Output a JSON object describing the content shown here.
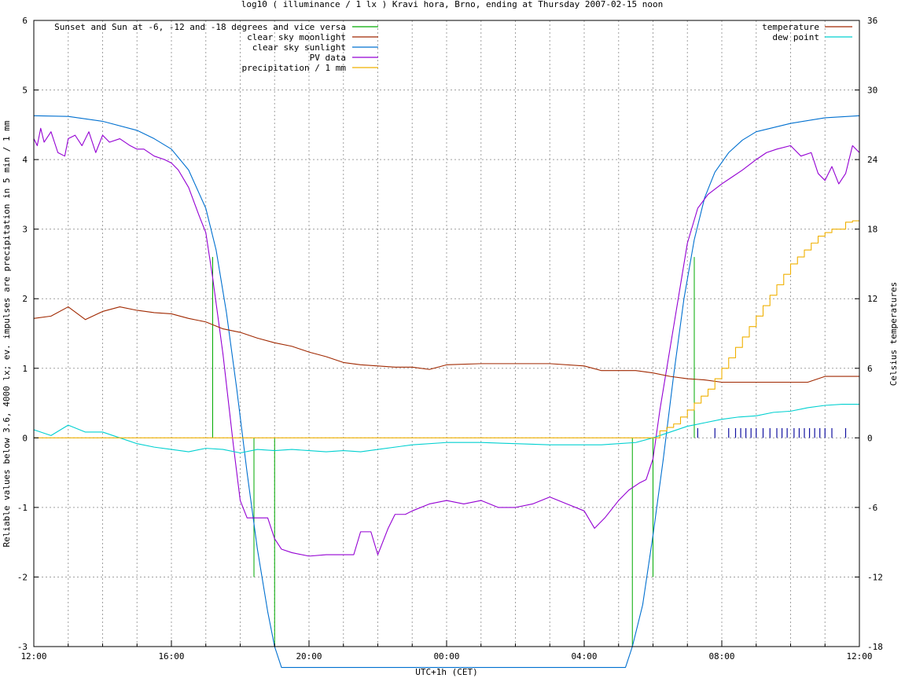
{
  "chart_data": {
    "type": "line",
    "title": "log10 ( illuminance / 1 lx ) Kravi hora, Brno, ending at Thursday 2007-02-15 noon",
    "xlabel": "UTC+1h (CET)",
    "ylabel": "Reliable values below 3.6, 4000 lx; ev. impulses are precipitation in 5 min / 1 mm",
    "y2label": "Celsius temperatures",
    "xunit": "hours since 12:00 CET",
    "xlim": [
      0,
      24
    ],
    "ylim": [
      -3,
      6
    ],
    "y2lim": [
      -18,
      36
    ],
    "xticks": [
      {
        "x": 0,
        "label": "12:00"
      },
      {
        "x": 4,
        "label": "16:00"
      },
      {
        "x": 8,
        "label": "20:00"
      },
      {
        "x": 12,
        "label": "00:00"
      },
      {
        "x": 16,
        "label": "04:00"
      },
      {
        "x": 20,
        "label": "08:00"
      },
      {
        "x": 24,
        "label": "12:00"
      }
    ],
    "yticks": [
      -3,
      -2,
      -1,
      0,
      1,
      2,
      3,
      4,
      5,
      6
    ],
    "y2ticks": [
      -18,
      -12,
      -6,
      0,
      6,
      12,
      18,
      24,
      30,
      36
    ],
    "grid": true,
    "legend_left": [
      {
        "label": "Sunset and Sun at -6, -12 and -18 degrees and vice versa",
        "color": "#00aa00"
      },
      {
        "label": "clear sky moonlight",
        "color": "#a02800"
      },
      {
        "label": "clear sky sunlight",
        "color": "#0070d0"
      },
      {
        "label": "PV data",
        "color": "#9400d3"
      },
      {
        "label": "precipitation / 1 mm",
        "color": "#f0b000"
      }
    ],
    "legend_right": [
      {
        "label": "temperature",
        "color": "#a02800"
      },
      {
        "label": "dew point",
        "color": "#00d0d0"
      }
    ],
    "sun_markers": [
      {
        "x": 5.2,
        "y": 2.6
      },
      {
        "x": 5.8,
        "y": 0.0
      },
      {
        "x": 6.4,
        "y": -2.0
      },
      {
        "x": 7.0,
        "y": -3.0
      },
      {
        "x": 17.4,
        "y": -3.0
      },
      {
        "x": 18.0,
        "y": -2.0
      },
      {
        "x": 18.6,
        "y": 0.0
      },
      {
        "x": 19.2,
        "y": 2.6
      }
    ],
    "series": [
      {
        "name": "clear sky sunlight",
        "color": "#0070d0",
        "axis": "y",
        "x": [
          0,
          1,
          2,
          3,
          3.5,
          4,
          4.5,
          5,
          5.3,
          5.6,
          5.9,
          6.2,
          6.5,
          6.8,
          7.0,
          7.2,
          17.2,
          17.4,
          17.7,
          18.0,
          18.3,
          18.6,
          18.9,
          19.2,
          19.5,
          19.8,
          20.2,
          20.6,
          21,
          22,
          23,
          24
        ],
        "y": [
          4.63,
          4.62,
          4.55,
          4.42,
          4.3,
          4.15,
          3.85,
          3.3,
          2.7,
          1.8,
          0.7,
          -0.5,
          -1.6,
          -2.5,
          -3.0,
          -3.3,
          -3.3,
          -3.0,
          -2.4,
          -1.4,
          -0.3,
          0.9,
          2.0,
          2.85,
          3.45,
          3.82,
          4.1,
          4.28,
          4.4,
          4.52,
          4.6,
          4.63
        ]
      },
      {
        "name": "PV data",
        "color": "#9400d3",
        "axis": "y",
        "x": [
          0,
          0.1,
          0.2,
          0.3,
          0.5,
          0.7,
          0.9,
          1.0,
          1.2,
          1.4,
          1.6,
          1.8,
          2.0,
          2.2,
          2.5,
          2.8,
          3.0,
          3.2,
          3.5,
          3.8,
          4.0,
          4.2,
          4.5,
          4.8,
          5.0,
          5.2,
          5.5,
          5.8,
          6.0,
          6.2,
          6.4,
          6.6,
          6.8,
          7.0,
          7.2,
          7.5,
          8.0,
          8.5,
          9.0,
          9.3,
          9.5,
          9.8,
          10.0,
          10.3,
          10.5,
          10.8,
          11.0,
          11.5,
          12.0,
          12.5,
          13.0,
          13.5,
          14.0,
          14.5,
          15.0,
          15.5,
          16.0,
          16.3,
          16.6,
          17.0,
          17.3,
          17.6,
          17.8,
          18.0,
          18.2,
          18.5,
          18.8,
          19.0,
          19.3,
          19.6,
          20.0,
          20.3,
          20.6,
          21.0,
          21.3,
          21.6,
          22.0,
          22.3,
          22.6,
          22.8,
          23.0,
          23.2,
          23.4,
          23.6,
          23.8,
          24.0
        ],
        "y": [
          4.3,
          4.2,
          4.45,
          4.25,
          4.4,
          4.1,
          4.05,
          4.3,
          4.35,
          4.2,
          4.4,
          4.1,
          4.35,
          4.25,
          4.3,
          4.2,
          4.15,
          4.15,
          4.05,
          4.0,
          3.95,
          3.85,
          3.6,
          3.2,
          2.95,
          2.3,
          1.2,
          -0.1,
          -0.9,
          -1.15,
          -1.15,
          -1.15,
          -1.15,
          -1.45,
          -1.6,
          -1.65,
          -1.7,
          -1.68,
          -1.68,
          -1.68,
          -1.35,
          -1.35,
          -1.68,
          -1.3,
          -1.1,
          -1.1,
          -1.05,
          -0.95,
          -0.9,
          -0.95,
          -0.9,
          -1.0,
          -1.0,
          -0.95,
          -0.85,
          -0.95,
          -1.05,
          -1.3,
          -1.15,
          -0.9,
          -0.75,
          -0.65,
          -0.6,
          -0.3,
          0.4,
          1.3,
          2.2,
          2.8,
          3.3,
          3.5,
          3.65,
          3.75,
          3.85,
          4.0,
          4.1,
          4.15,
          4.2,
          4.05,
          4.1,
          3.8,
          3.7,
          3.9,
          3.65,
          3.8,
          4.2,
          4.1
        ]
      },
      {
        "name": "temperature",
        "color": "#a02800",
        "axis": "y2",
        "x": [
          0,
          0.5,
          1.0,
          1.5,
          2.0,
          2.5,
          3.0,
          3.5,
          4.0,
          4.5,
          5.0,
          5.5,
          6.0,
          6.5,
          7.0,
          7.5,
          8.0,
          8.5,
          9.0,
          9.5,
          10.0,
          10.5,
          11.0,
          11.5,
          12.0,
          13.0,
          14.0,
          15.0,
          16.0,
          16.5,
          17.0,
          17.5,
          18.0,
          18.5,
          19.0,
          19.5,
          20.0,
          21.0,
          22.0,
          22.5,
          23.0,
          24.0
        ],
        "y": [
          10.3,
          10.5,
          11.3,
          10.2,
          10.9,
          11.3,
          11.0,
          10.8,
          10.7,
          10.3,
          10.0,
          9.4,
          9.1,
          8.6,
          8.2,
          7.9,
          7.4,
          7.0,
          6.5,
          6.3,
          6.2,
          6.1,
          6.1,
          5.9,
          6.3,
          6.4,
          6.4,
          6.4,
          6.2,
          5.8,
          5.8,
          5.8,
          5.6,
          5.3,
          5.1,
          5.0,
          4.8,
          4.8,
          4.8,
          4.8,
          5.3,
          5.3
        ]
      },
      {
        "name": "dew point",
        "color": "#00d0d0",
        "axis": "y2",
        "x": [
          0,
          0.5,
          1.0,
          1.5,
          2.0,
          2.5,
          3.0,
          3.5,
          4.0,
          4.5,
          5.0,
          5.5,
          6.0,
          6.5,
          7.0,
          7.5,
          8.0,
          8.5,
          9.0,
          9.5,
          10.0,
          11.0,
          12.0,
          13.0,
          14.0,
          15.0,
          16.0,
          16.5,
          17.0,
          17.5,
          18.0,
          18.5,
          19.0,
          19.5,
          20.0,
          20.5,
          21.0,
          21.5,
          22.0,
          22.5,
          23.0,
          23.5,
          24.0
        ],
        "y": [
          0.7,
          0.2,
          1.1,
          0.5,
          0.5,
          0.0,
          -0.5,
          -0.8,
          -1.0,
          -1.2,
          -0.9,
          -1.0,
          -1.3,
          -1.0,
          -1.1,
          -1.0,
          -1.1,
          -1.2,
          -1.1,
          -1.2,
          -1.0,
          -0.6,
          -0.4,
          -0.4,
          -0.5,
          -0.6,
          -0.6,
          -0.6,
          -0.5,
          -0.4,
          0.0,
          0.5,
          1.0,
          1.3,
          1.6,
          1.8,
          1.9,
          2.2,
          2.3,
          2.6,
          2.8,
          2.9,
          2.9
        ]
      },
      {
        "name": "precipitation / 1 mm",
        "color": "#f0b000",
        "axis": "y",
        "step": true,
        "x": [
          0,
          18.0,
          18.2,
          18.4,
          18.6,
          18.8,
          19.0,
          19.2,
          19.4,
          19.6,
          19.8,
          20.0,
          20.2,
          20.4,
          20.6,
          20.8,
          21.0,
          21.2,
          21.4,
          21.6,
          21.8,
          22.0,
          22.2,
          22.4,
          22.6,
          22.8,
          23.0,
          23.2,
          23.4,
          23.6,
          23.8,
          24.0
        ],
        "y": [
          0,
          0.0,
          0.1,
          0.15,
          0.2,
          0.3,
          0.4,
          0.5,
          0.6,
          0.7,
          0.85,
          1.0,
          1.15,
          1.3,
          1.45,
          1.6,
          1.75,
          1.9,
          2.05,
          2.2,
          2.35,
          2.5,
          2.6,
          2.7,
          2.8,
          2.9,
          2.95,
          3.0,
          3.0,
          3.1,
          3.12,
          3.12
        ]
      }
    ],
    "precip_impulses": {
      "color": "#1010a0",
      "x": [
        19.3,
        19.8,
        20.2,
        20.4,
        20.55,
        20.7,
        20.85,
        21.0,
        21.2,
        21.4,
        21.6,
        21.75,
        21.9,
        22.1,
        22.25,
        22.4,
        22.55,
        22.7,
        22.85,
        23.0,
        23.2,
        23.6
      ],
      "y": [
        0.14,
        0.14,
        0.14,
        0.14,
        0.14,
        0.14,
        0.14,
        0.14,
        0.14,
        0.14,
        0.14,
        0.14,
        0.14,
        0.14,
        0.14,
        0.14,
        0.14,
        0.14,
        0.14,
        0.14,
        0.14,
        0.14
      ]
    }
  }
}
